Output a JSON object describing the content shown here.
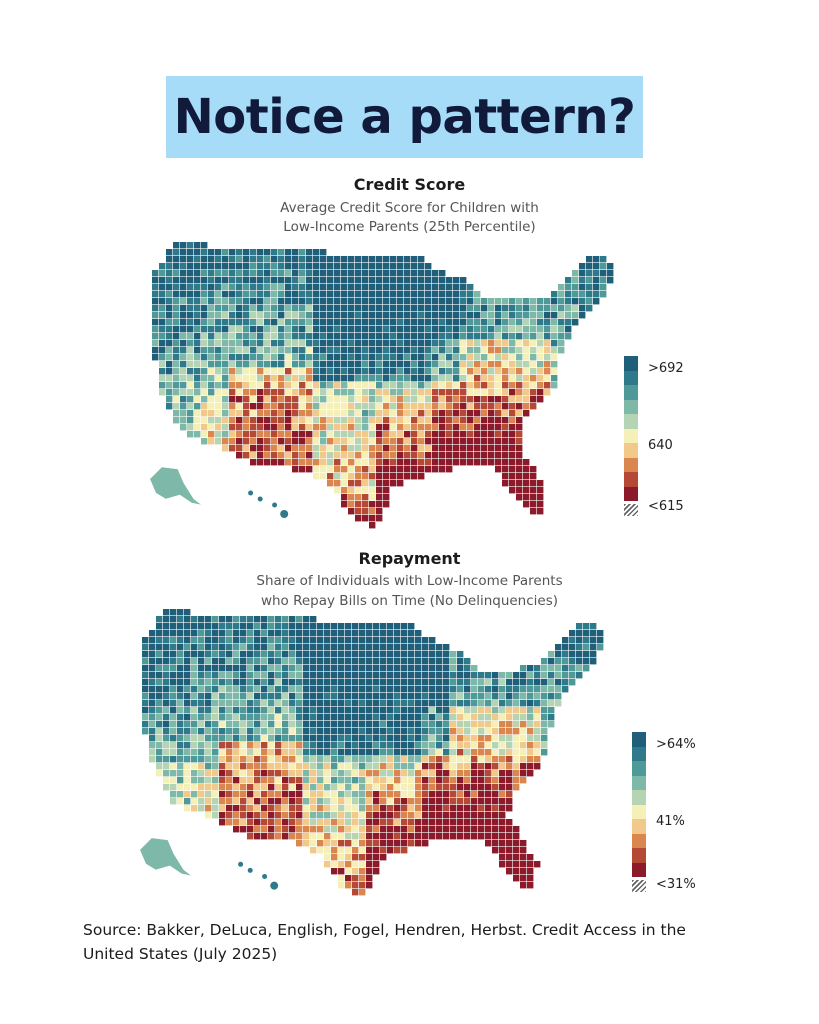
{
  "headline": "Notice a pattern?",
  "colors": {
    "headline_bg": "#a6dcf7",
    "scale": [
      "#1f5f7a",
      "#2f7a8a",
      "#4f9a99",
      "#7db8a8",
      "#b4d4b4",
      "#f5f0b8",
      "#f1c98a",
      "#d9864f",
      "#b44a35",
      "#8b1a2a"
    ]
  },
  "maps": [
    {
      "title": "Credit Score",
      "subtitle_line1": "Average Credit Score for Children with",
      "subtitle_line2": "Low-Income Parents (25th Percentile)",
      "legend": {
        "high": ">692",
        "mid": "640",
        "low": "<615",
        "no_data": "hatched"
      },
      "pattern": {
        "region_low": "Southeast, South and Southwest",
        "region_high": "Upper Midwest and Northern Plains"
      }
    },
    {
      "title": "Repayment",
      "subtitle_line1": "Share of Individuals with Low-Income Parents",
      "subtitle_line2": "who Repay Bills on Time (No Delinquencies)",
      "legend": {
        "high": ">64%",
        "mid": "41%",
        "low": "<31%",
        "no_data": "hatched"
      },
      "pattern": {
        "region_low": "Southeast, South and Southwest",
        "region_high": "Upper Midwest and Northern Plains"
      }
    }
  ],
  "source": "Source: Bakker, DeLuca, English, Fogel, Hendren, Herbst. Credit Access in the United States (July 2025)"
}
